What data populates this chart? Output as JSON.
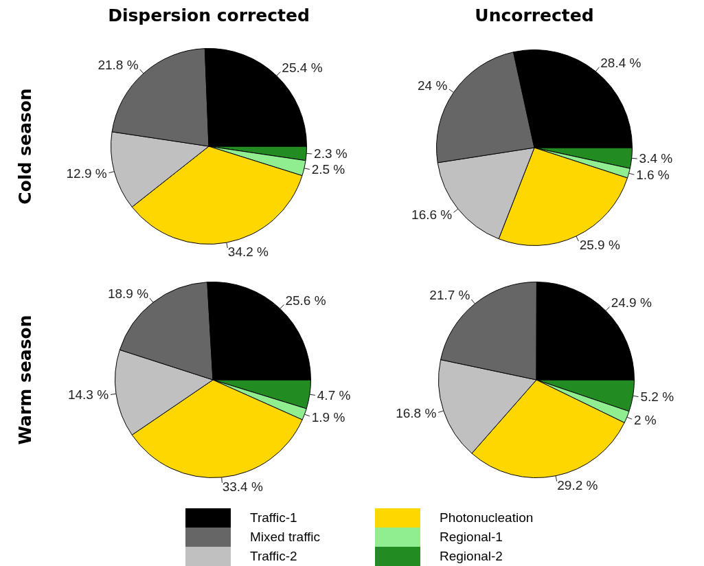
{
  "chart_data": [
    {
      "type": "pie",
      "title": "Dispersion corrected",
      "ylabel": "Cold season",
      "legend": "bottom",
      "categories": [
        "Traffic-1",
        "Mixed traffic",
        "Traffic-2",
        "Photonucleation",
        "Regional-1",
        "Regional-2"
      ],
      "values": [
        25.4,
        21.8,
        12.9,
        34.2,
        2.5,
        2.3
      ],
      "value_labels": [
        "25.4 %",
        "21.8 %",
        "12.9 %",
        "34.2 %",
        "2.5 %",
        "2.3 %"
      ],
      "colors": [
        "#000000",
        "#666666",
        "#c0c0c0",
        "#ffd700",
        "#90ee90",
        "#228b22"
      ]
    },
    {
      "type": "pie",
      "title": "Uncorrected",
      "categories": [
        null,
        null,
        null,
        null,
        null,
        null
      ],
      "values": [
        28.4,
        24,
        16.6,
        25.9,
        1.6,
        3.4
      ],
      "value_labels": [
        "28.4 %",
        "24 %",
        "16.6 %",
        "25.9 %",
        "1.6 %",
        "3.4 %"
      ],
      "colors": [
        "#000000",
        "#666666",
        "#c0c0c0",
        "#ffd700",
        "#90ee90",
        "#228b22"
      ]
    },
    {
      "type": "pie",
      "ylabel": "Warm season",
      "categories": [
        null,
        null,
        null,
        null,
        null,
        null
      ],
      "values": [
        25.6,
        18.9,
        14.3,
        33.4,
        1.9,
        4.7
      ],
      "value_labels": [
        "25.6 %",
        "18.9 %",
        "14.3 %",
        "33.4 %",
        "1.9 %",
        "4.7 %"
      ],
      "colors": [
        "#000000",
        "#666666",
        "#c0c0c0",
        "#ffd700",
        "#90ee90",
        "#228b22"
      ]
    },
    {
      "type": "pie",
      "categories": [
        null,
        null,
        null,
        null,
        null,
        null
      ],
      "values": [
        24.9,
        21.7,
        16.8,
        29.2,
        2,
        5.2
      ],
      "value_labels": [
        "24.9 %",
        "21.7 %",
        "16.8 %",
        "29.2 %",
        "2 %",
        "5.2 %"
      ],
      "colors": [
        "#000000",
        "#666666",
        "#c0c0c0",
        "#ffd700",
        "#90ee90",
        "#228b22"
      ]
    }
  ]
}
